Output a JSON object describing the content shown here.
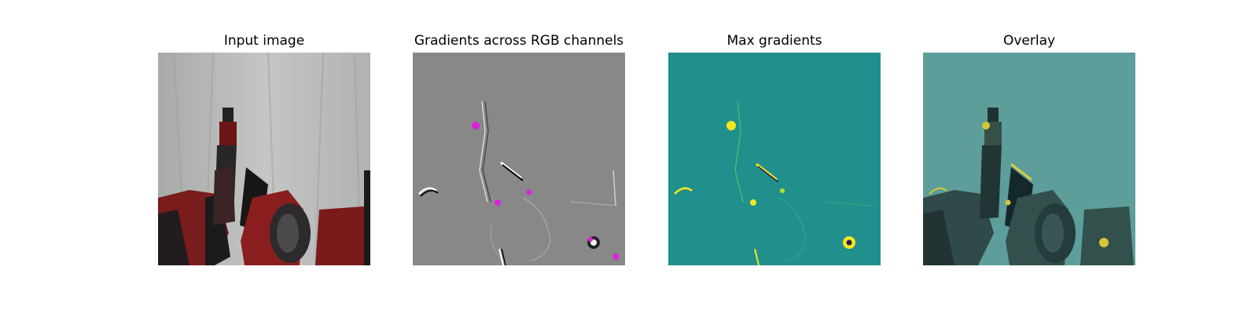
{
  "figure": {
    "panels": [
      {
        "title": "Input image"
      },
      {
        "title": "Gradients across RGB channels"
      },
      {
        "title": "Max gradients"
      },
      {
        "title": "Overlay"
      }
    ]
  },
  "colors": {
    "figure_background": "#ffffff",
    "input_backdrop": "#b9bcba",
    "robot_red": "#7a1c1c",
    "robot_black": "#1e1a1c",
    "gradient_background": "#888888",
    "gradient_highlight": "#e020e0",
    "max_gradient_background": "#21908d",
    "max_gradient_highlight": "#f5e61f",
    "overlay_background": "#5d9e9a"
  }
}
